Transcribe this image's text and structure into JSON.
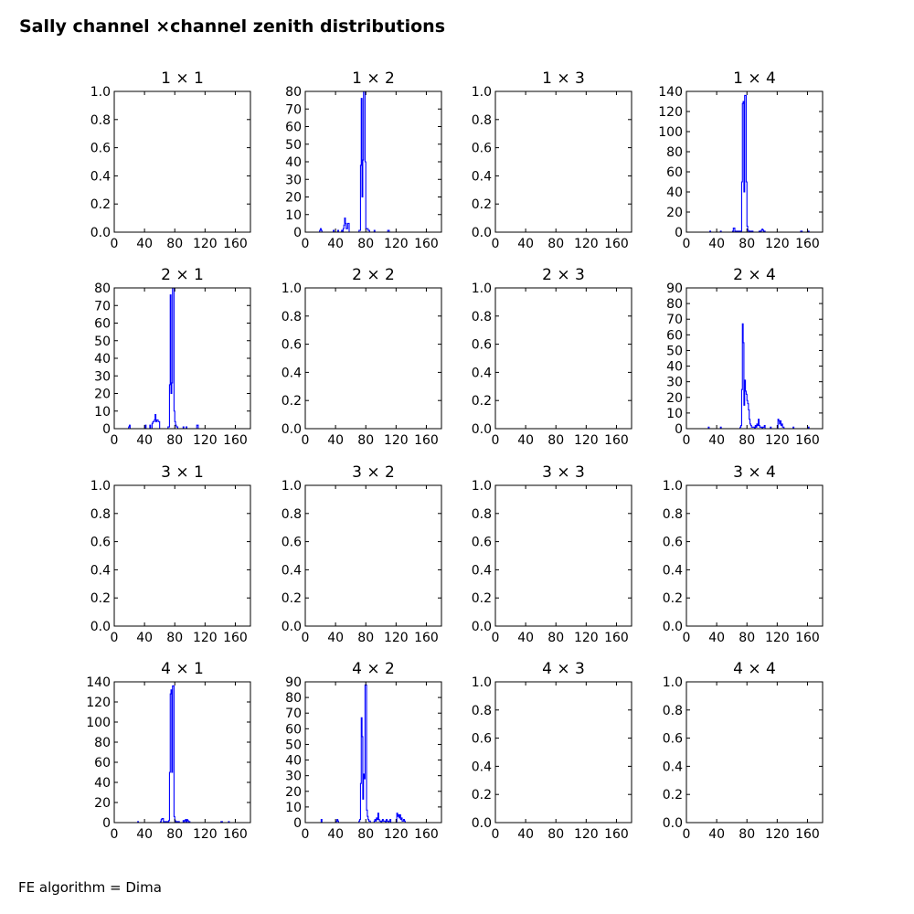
{
  "title": "Sally channel ×channel zenith distributions",
  "footer": "FE algorithm = Dima",
  "colors": {
    "line": "#0000ff",
    "axis": "#000000",
    "background": "#ffffff"
  },
  "chart_data": [
    {
      "type": "line",
      "title": "1  × 1",
      "xticks": [
        "0",
        "40",
        "80",
        "120",
        "160"
      ],
      "xlim": [
        0,
        180
      ],
      "ylim": [
        0,
        1
      ],
      "yticks": [
        "0.0",
        "0.2",
        "0.4",
        "0.6",
        "0.8",
        "1.0"
      ],
      "x": [],
      "y": []
    },
    {
      "type": "line",
      "title": "1  × 2",
      "xticks": [
        "0",
        "40",
        "80",
        "120",
        "160"
      ],
      "xlim": [
        0,
        180
      ],
      "ylim": [
        0,
        80
      ],
      "yticks": [
        "0",
        "10",
        "20",
        "30",
        "40",
        "50",
        "60",
        "70",
        "80"
      ],
      "x": [
        0,
        18,
        19,
        20,
        21,
        22,
        36,
        37,
        38,
        42,
        43,
        44,
        47,
        48,
        49,
        50,
        51,
        52,
        53,
        54,
        56,
        58,
        60,
        70,
        71,
        72,
        73,
        74,
        75,
        76,
        77,
        78,
        79,
        80,
        81,
        82,
        83,
        84,
        85,
        86,
        88,
        90,
        91,
        92,
        108,
        109,
        110,
        111,
        180
      ],
      "y": [
        0,
        0,
        1,
        2,
        1,
        0,
        0,
        1,
        0,
        0,
        1,
        0,
        0,
        1,
        0,
        2,
        4,
        8,
        5,
        2,
        5,
        0,
        0,
        0,
        1,
        1,
        38,
        76,
        20,
        41,
        80,
        80,
        40,
        2,
        2,
        2,
        1,
        1,
        0,
        0,
        0,
        0,
        1,
        0,
        0,
        1,
        1,
        0,
        0
      ]
    },
    {
      "type": "line",
      "title": "1  × 3",
      "xticks": [
        "0",
        "40",
        "80",
        "120",
        "160"
      ],
      "xlim": [
        0,
        180
      ],
      "ylim": [
        0,
        1
      ],
      "yticks": [
        "0.0",
        "0.2",
        "0.4",
        "0.6",
        "0.8",
        "1.0"
      ],
      "x": [],
      "y": []
    },
    {
      "type": "line",
      "title": "1  × 4",
      "xticks": [
        "0",
        "40",
        "80",
        "120",
        "160"
      ],
      "xlim": [
        0,
        180
      ],
      "ylim": [
        0,
        140
      ],
      "yticks": [
        "0",
        "20",
        "40",
        "60",
        "80",
        "100",
        "120",
        "140"
      ],
      "x": [
        0,
        30,
        31,
        32,
        44,
        45,
        46,
        60,
        61,
        62,
        63,
        64,
        70,
        71,
        72,
        73,
        74,
        75,
        76,
        77,
        78,
        79,
        80,
        81,
        82,
        84,
        86,
        88,
        95,
        96,
        97,
        98,
        99,
        100,
        101,
        102,
        103,
        104,
        150,
        151,
        152,
        153,
        160,
        161,
        162,
        180
      ],
      "y": [
        0,
        0,
        1,
        0,
        0,
        1,
        0,
        0,
        1,
        4,
        4,
        1,
        0,
        1,
        1,
        50,
        128,
        130,
        40,
        136,
        136,
        50,
        6,
        2,
        1,
        1,
        1,
        0,
        0,
        1,
        1,
        0,
        2,
        3,
        2,
        1,
        1,
        0,
        0,
        1,
        1,
        0,
        0,
        1,
        0,
        0
      ]
    },
    {
      "type": "line",
      "title": "2  × 1",
      "xticks": [
        "0",
        "40",
        "80",
        "120",
        "160"
      ],
      "xlim": [
        0,
        180
      ],
      "ylim": [
        0,
        80
      ],
      "yticks": [
        "0",
        "10",
        "20",
        "30",
        "40",
        "50",
        "60",
        "70",
        "80"
      ],
      "x": [
        0,
        18,
        19,
        20,
        21,
        40,
        41,
        42,
        46,
        47,
        48,
        50,
        51,
        52,
        53,
        54,
        55,
        56,
        58,
        60,
        70,
        71,
        72,
        73,
        74,
        75,
        76,
        77,
        78,
        79,
        80,
        81,
        82,
        84,
        90,
        91,
        92,
        94,
        95,
        96,
        108,
        109,
        110,
        111,
        180
      ],
      "y": [
        0,
        0,
        1,
        2,
        0,
        0,
        2,
        0,
        0,
        2,
        0,
        3,
        4,
        4,
        5,
        8,
        4,
        5,
        4,
        0,
        0,
        1,
        1,
        25,
        76,
        20,
        26,
        80,
        80,
        10,
        4,
        2,
        1,
        0,
        0,
        1,
        0,
        0,
        1,
        0,
        0,
        2,
        2,
        0,
        0
      ]
    },
    {
      "type": "line",
      "title": "2  × 2",
      "xticks": [
        "0",
        "40",
        "80",
        "120",
        "160"
      ],
      "xlim": [
        0,
        180
      ],
      "ylim": [
        0,
        1
      ],
      "yticks": [
        "0.0",
        "0.2",
        "0.4",
        "0.6",
        "0.8",
        "1.0"
      ],
      "x": [],
      "y": []
    },
    {
      "type": "line",
      "title": "2  × 3",
      "xticks": [
        "0",
        "40",
        "80",
        "120",
        "160"
      ],
      "xlim": [
        0,
        180
      ],
      "ylim": [
        0,
        1
      ],
      "yticks": [
        "0.0",
        "0.2",
        "0.4",
        "0.6",
        "0.8",
        "1.0"
      ],
      "x": [],
      "y": []
    },
    {
      "type": "line",
      "title": "2  × 4",
      "xticks": [
        "0",
        "40",
        "80",
        "120",
        "160"
      ],
      "xlim": [
        0,
        180
      ],
      "ylim": [
        0,
        90
      ],
      "yticks": [
        "0",
        "10",
        "20",
        "30",
        "40",
        "50",
        "60",
        "70",
        "80",
        "90"
      ],
      "x": [
        0,
        28,
        29,
        30,
        44,
        45,
        46,
        70,
        71,
        72,
        73,
        74,
        75,
        76,
        77,
        78,
        79,
        80,
        81,
        82,
        83,
        84,
        85,
        86,
        88,
        90,
        91,
        92,
        93,
        94,
        95,
        96,
        97,
        100,
        101,
        102,
        103,
        104,
        110,
        111,
        112,
        120,
        121,
        122,
        123,
        124,
        125,
        126,
        127,
        128,
        129,
        140,
        141,
        142,
        160,
        161,
        162,
        180
      ],
      "y": [
        0,
        0,
        1,
        0,
        0,
        1,
        0,
        0,
        1,
        2,
        25,
        67,
        55,
        15,
        31,
        24,
        22,
        18,
        16,
        12,
        6,
        3,
        2,
        1,
        1,
        0,
        2,
        1,
        3,
        2,
        6,
        2,
        1,
        0,
        1,
        1,
        2,
        0,
        0,
        1,
        0,
        0,
        6,
        5,
        3,
        5,
        2,
        3,
        1,
        1,
        0,
        0,
        1,
        0,
        0,
        1,
        0,
        0
      ]
    },
    {
      "type": "line",
      "title": "3  × 1",
      "xticks": [
        "0",
        "40",
        "80",
        "120",
        "160"
      ],
      "xlim": [
        0,
        180
      ],
      "ylim": [
        0,
        1
      ],
      "yticks": [
        "0.0",
        "0.2",
        "0.4",
        "0.6",
        "0.8",
        "1.0"
      ],
      "x": [],
      "y": []
    },
    {
      "type": "line",
      "title": "3  × 2",
      "xticks": [
        "0",
        "40",
        "80",
        "120",
        "160"
      ],
      "xlim": [
        0,
        180
      ],
      "ylim": [
        0,
        1
      ],
      "yticks": [
        "0.0",
        "0.2",
        "0.4",
        "0.6",
        "0.8",
        "1.0"
      ],
      "x": [],
      "y": []
    },
    {
      "type": "line",
      "title": "3  × 3",
      "xticks": [
        "0",
        "40",
        "80",
        "120",
        "160"
      ],
      "xlim": [
        0,
        180
      ],
      "ylim": [
        0,
        1
      ],
      "yticks": [
        "0.0",
        "0.2",
        "0.4",
        "0.6",
        "0.8",
        "1.0"
      ],
      "x": [],
      "y": []
    },
    {
      "type": "line",
      "title": "3  × 4",
      "xticks": [
        "0",
        "40",
        "80",
        "120",
        "160"
      ],
      "xlim": [
        0,
        180
      ],
      "ylim": [
        0,
        1
      ],
      "yticks": [
        "0.0",
        "0.2",
        "0.4",
        "0.6",
        "0.8",
        "1.0"
      ],
      "x": [],
      "y": []
    },
    {
      "type": "line",
      "title": "4  × 1",
      "xticks": [
        "0",
        "40",
        "80",
        "120",
        "160"
      ],
      "xlim": [
        0,
        180
      ],
      "ylim": [
        0,
        140
      ],
      "yticks": [
        "0",
        "20",
        "40",
        "60",
        "80",
        "100",
        "120",
        "140"
      ],
      "x": [
        0,
        30,
        31,
        32,
        60,
        61,
        62,
        63,
        64,
        65,
        70,
        71,
        72,
        73,
        74,
        75,
        76,
        77,
        78,
        79,
        80,
        81,
        82,
        84,
        86,
        88,
        90,
        91,
        92,
        93,
        94,
        95,
        96,
        97,
        98,
        100,
        140,
        141,
        142,
        143,
        150,
        151,
        152,
        180
      ],
      "y": [
        0,
        0,
        1,
        0,
        0,
        1,
        3,
        4,
        4,
        1,
        0,
        1,
        2,
        50,
        128,
        132,
        50,
        136,
        136,
        6,
        2,
        1,
        1,
        1,
        0,
        0,
        0,
        2,
        1,
        2,
        3,
        1,
        3,
        2,
        1,
        0,
        0,
        1,
        1,
        0,
        0,
        1,
        0,
        0
      ]
    },
    {
      "type": "line",
      "title": "4  × 2",
      "xticks": [
        "0",
        "40",
        "80",
        "120",
        "160"
      ],
      "xlim": [
        0,
        180
      ],
      "ylim": [
        0,
        90
      ],
      "yticks": [
        "0",
        "10",
        "20",
        "30",
        "40",
        "50",
        "60",
        "70",
        "80",
        "90"
      ],
      "x": [
        0,
        20,
        21,
        22,
        40,
        41,
        42,
        43,
        44,
        70,
        71,
        72,
        73,
        74,
        75,
        76,
        77,
        78,
        79,
        80,
        81,
        82,
        83,
        84,
        85,
        86,
        88,
        90,
        91,
        92,
        93,
        94,
        95,
        96,
        97,
        98,
        100,
        101,
        102,
        103,
        104,
        106,
        107,
        108,
        110,
        111,
        112,
        113,
        120,
        121,
        122,
        123,
        124,
        125,
        126,
        127,
        128,
        129,
        130,
        131,
        132,
        180
      ],
      "y": [
        0,
        0,
        2,
        0,
        0,
        1,
        2,
        1,
        0,
        0,
        1,
        2,
        25,
        67,
        55,
        15,
        31,
        28,
        88,
        88,
        8,
        4,
        2,
        1,
        1,
        0,
        0,
        0,
        1,
        2,
        1,
        3,
        2,
        6,
        2,
        1,
        0,
        1,
        2,
        1,
        1,
        0,
        2,
        1,
        0,
        1,
        2,
        0,
        0,
        6,
        4,
        5,
        3,
        5,
        2,
        3,
        1,
        1,
        2,
        1,
        0,
        0
      ]
    },
    {
      "type": "line",
      "title": "4  × 3",
      "xticks": [
        "0",
        "40",
        "80",
        "120",
        "160"
      ],
      "xlim": [
        0,
        180
      ],
      "ylim": [
        0,
        1
      ],
      "yticks": [
        "0.0",
        "0.2",
        "0.4",
        "0.6",
        "0.8",
        "1.0"
      ],
      "x": [],
      "y": []
    },
    {
      "type": "line",
      "title": "4  × 4",
      "xticks": [
        "0",
        "40",
        "80",
        "120",
        "160"
      ],
      "xlim": [
        0,
        180
      ],
      "ylim": [
        0,
        1
      ],
      "yticks": [
        "0.0",
        "0.2",
        "0.4",
        "0.6",
        "0.8",
        "1.0"
      ],
      "x": [],
      "y": []
    }
  ]
}
